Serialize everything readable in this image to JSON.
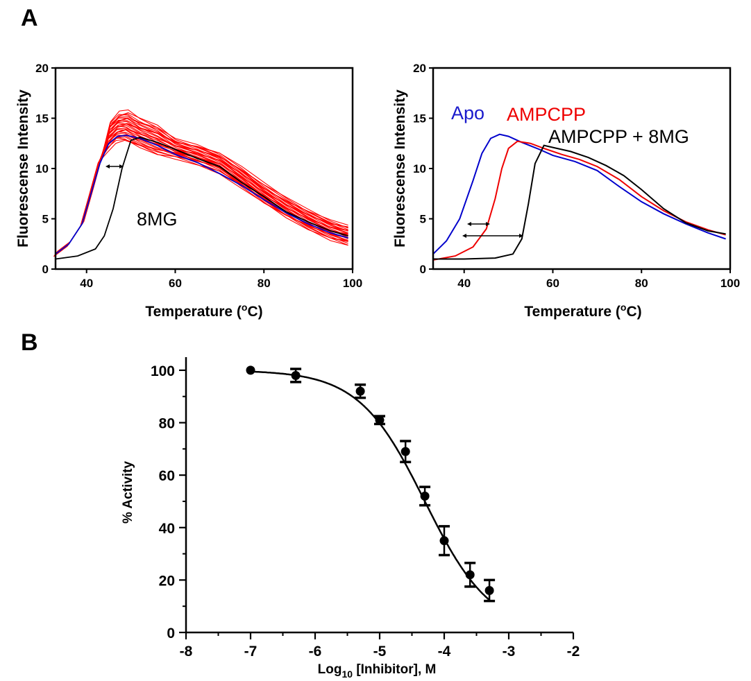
{
  "panels": {
    "a_letter": "A",
    "b_letter": "B"
  },
  "chart_data": [
    {
      "type": "line",
      "panel": "A-left",
      "xlabel": "Temperature (oC)",
      "xlabel_main": "Temperature (",
      "xlabel_sup": "o",
      "xlabel_tail": "C)",
      "ylabel": "Fluorescense Intensity",
      "xlim": [
        33,
        100
      ],
      "ylim": [
        0,
        20
      ],
      "xticks": [
        "40",
        "60",
        "80",
        "100"
      ],
      "yticks": [
        "0",
        "5",
        "10",
        "15",
        "20"
      ],
      "annotations": [
        "8MG"
      ],
      "colors": {
        "compounds": "#ff0000",
        "reference": "#0000cc",
        "8MG": "#000000"
      },
      "series": [
        {
          "name": "8MG",
          "color": "#000000",
          "x": [
            33,
            38,
            42,
            44,
            46,
            48,
            50,
            52,
            56,
            60,
            65,
            70,
            75,
            80,
            85,
            90,
            95,
            99
          ],
          "y": [
            1.0,
            1.3,
            2.0,
            3.3,
            6.0,
            10.0,
            12.8,
            13.1,
            12.6,
            11.9,
            11.0,
            10.2,
            8.6,
            7.2,
            5.7,
            4.7,
            3.8,
            3.3
          ]
        },
        {
          "color": "#0000cc",
          "x": [
            33,
            36,
            39,
            41,
            43,
            45,
            47,
            49,
            52,
            56,
            60,
            65,
            70,
            75,
            80,
            85,
            90,
            95,
            99
          ],
          "y": [
            1.5,
            2.5,
            4.5,
            7.5,
            10.5,
            12.5,
            13.2,
            13.3,
            13.0,
            12.3,
            11.4,
            10.6,
            9.5,
            8.3,
            6.9,
            5.6,
            4.5,
            3.6,
            3.1
          ]
        }
      ],
      "red_family": {
        "count": 28,
        "center_y": [
          1.5,
          2.5,
          4.5,
          7.6,
          10.8,
          13.2,
          14.1,
          14.2,
          13.5,
          12.8,
          12.0,
          11.4,
          10.6,
          9.1,
          7.5,
          6.1,
          4.9,
          3.9,
          3.4
        ],
        "center_x": [
          33,
          36,
          39,
          41,
          43,
          45,
          47,
          49,
          52,
          56,
          60,
          65,
          70,
          75,
          80,
          85,
          90,
          95,
          99
        ]
      }
    },
    {
      "type": "line",
      "panel": "A-right",
      "xlabel": "Temperature (oC)",
      "xlabel_main": "Temperature (",
      "xlabel_sup": "o",
      "xlabel_tail": "C)",
      "ylabel": "Fluorescense Intensity",
      "xlim": [
        33,
        100
      ],
      "ylim": [
        0,
        20
      ],
      "xticks": [
        "40",
        "60",
        "80",
        "100"
      ],
      "yticks": [
        "0",
        "5",
        "10",
        "15",
        "20"
      ],
      "annotations": [
        "Apo",
        "AMPCPP",
        "AMPCPP + 8MG"
      ],
      "series": [
        {
          "name": "Apo",
          "color": "#0000cc",
          "x": [
            33,
            36,
            39,
            42,
            44,
            46,
            48,
            50,
            53,
            57,
            60,
            65,
            70,
            75,
            80,
            85,
            90,
            95,
            99
          ],
          "y": [
            1.5,
            2.8,
            5.0,
            8.8,
            11.5,
            13.0,
            13.4,
            13.2,
            12.6,
            11.9,
            11.3,
            10.7,
            9.8,
            8.2,
            6.7,
            5.5,
            4.5,
            3.6,
            3.0
          ]
        },
        {
          "name": "AMPCPP",
          "color": "#ee0000",
          "x": [
            33,
            38,
            42,
            45,
            47,
            48.5,
            50,
            52,
            55,
            58,
            62,
            66,
            70,
            75,
            80,
            85,
            90,
            95,
            99
          ],
          "y": [
            0.9,
            1.3,
            2.2,
            4.0,
            7.0,
            10.0,
            12.0,
            12.7,
            12.5,
            12.0,
            11.4,
            10.9,
            10.2,
            8.9,
            7.2,
            5.8,
            4.7,
            3.9,
            3.4
          ]
        },
        {
          "name": "AMPCPP + 8MG",
          "color": "#000000",
          "x": [
            33,
            40,
            47,
            51,
            53,
            54.5,
            56,
            58,
            60,
            64,
            68,
            72,
            76,
            80,
            85,
            90,
            95,
            99
          ],
          "y": [
            1.0,
            1.0,
            1.1,
            1.5,
            3.0,
            6.5,
            10.5,
            12.3,
            12.1,
            11.7,
            11.1,
            10.3,
            9.3,
            7.9,
            6.0,
            4.6,
            3.8,
            3.5
          ]
        }
      ]
    },
    {
      "type": "scatter",
      "panel": "B",
      "xlabel": "Log10 [Inhibitor], M",
      "xlabel_pre": "Log",
      "xlabel_sub": "10",
      "xlabel_post": " [Inhibitor], M",
      "ylabel": "% Activity",
      "xlim": [
        -8,
        -2
      ],
      "ylim": [
        0,
        105
      ],
      "xticks": [
        "-8",
        "-7",
        "-6",
        "-5",
        "-4",
        "-3",
        "-2"
      ],
      "yticks": [
        "0",
        "20",
        "40",
        "60",
        "80",
        "100"
      ],
      "points": [
        {
          "x": -7.0,
          "y": 100,
          "err": 0
        },
        {
          "x": -6.3,
          "y": 98,
          "err": 2.5
        },
        {
          "x": -5.3,
          "y": 92,
          "err": 2.5
        },
        {
          "x": -5.0,
          "y": 81,
          "err": 1.5
        },
        {
          "x": -4.6,
          "y": 69,
          "err": 4
        },
        {
          "x": -4.3,
          "y": 52,
          "err": 3.5
        },
        {
          "x": -4.0,
          "y": 35,
          "err": 5.5
        },
        {
          "x": -3.6,
          "y": 22,
          "err": 4.5
        },
        {
          "x": -3.3,
          "y": 16,
          "err": 4
        }
      ],
      "fit": {
        "type": "sigmoid",
        "top": 100,
        "bottom": 0,
        "log_ic50": -4.3,
        "hill": 0.85,
        "x_range": [
          -7.0,
          -3.3
        ]
      }
    }
  ]
}
